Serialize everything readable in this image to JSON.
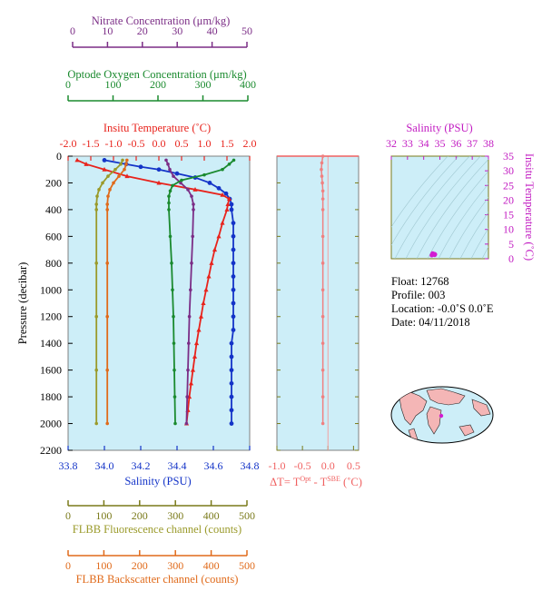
{
  "colors": {
    "panel_bg": "#cdeef8",
    "nitrate": "#7b2d86",
    "oxygen": "#1a8a2e",
    "temperature": "#e8231c",
    "salinity": "#1434c8",
    "fluorescence": "#9a9a2a",
    "backscatter": "#e06a1a",
    "delta_t": "#f08080",
    "ts_axis": "#c21cc2",
    "olive_axis": "#7a7a1a",
    "land": "#f4b6b6"
  },
  "axes": {
    "nitrate_label": "Nitrate Concentration (μm/kg)",
    "nitrate_ticks": [
      "0",
      "10",
      "20",
      "30",
      "40",
      "50"
    ],
    "oxygen_label": "Optode Oxygen Concentration (μm/kg)",
    "oxygen_ticks": [
      "0",
      "100",
      "200",
      "300",
      "400"
    ],
    "temperature_label": "Insitu Temperature (˚C)",
    "temperature_ticks": [
      "-2.0",
      "-1.5",
      "-1.0",
      "-0.5",
      "0.0",
      "0.5",
      "1.0",
      "1.5",
      "2.0"
    ],
    "pressure_label": "Pressure (decibar)",
    "pressure_ticks": [
      "0",
      "200",
      "400",
      "600",
      "800",
      "1000",
      "1200",
      "1400",
      "1600",
      "1800",
      "2000",
      "2200"
    ],
    "salinity_label": "Salinity (PSU)",
    "salinity_ticks": [
      "33.8",
      "34.0",
      "34.2",
      "34.4",
      "34.6",
      "34.8"
    ],
    "delta_label_prefix": "ΔT= T",
    "delta_label_sup1": "Opt",
    "delta_label_mid": " - T",
    "delta_label_sup2": "SBE",
    "delta_label_suffix": " (˚C)",
    "delta_ticks": [
      "-1.0",
      "-0.5",
      "0.0",
      "0.5"
    ],
    "fluorescence_label": "FLBB Fluorescence channel (counts)",
    "fluorescence_ticks": [
      "0",
      "100",
      "200",
      "300",
      "400",
      "500"
    ],
    "backscatter_label": "FLBB Backscatter channel (counts)",
    "backscatter_ticks": [
      "0",
      "100",
      "200",
      "300",
      "400",
      "500"
    ],
    "ts_salinity_label": "Salinity (PSU)",
    "ts_salinity_ticks": [
      "32",
      "33",
      "34",
      "35",
      "36",
      "37",
      "38"
    ],
    "ts_temperature_label": "Insitu Temperature (˚C)",
    "ts_temperature_ticks": [
      "0",
      "5",
      "10",
      "15",
      "20",
      "25",
      "30",
      "35"
    ]
  },
  "info": {
    "float": "Float:  12768",
    "profile": "Profile:  003",
    "location": "Location:  -0.0˚S   0.0˚E",
    "date": "Date:  04/11/2018"
  },
  "chart_data": [
    {
      "type": "line",
      "chart": "main-profile",
      "y_axis": "pressure (decibar)",
      "ylim": [
        2200,
        0
      ],
      "series": [
        {
          "name": "Salinity (PSU)",
          "xlim": [
            33.8,
            34.8
          ],
          "points": [
            [
              34.0,
              30
            ],
            [
              34.12,
              60
            ],
            [
              34.2,
              80
            ],
            [
              34.3,
              100
            ],
            [
              34.4,
              130
            ],
            [
              34.5,
              160
            ],
            [
              34.58,
              200
            ],
            [
              34.63,
              240
            ],
            [
              34.67,
              280
            ],
            [
              34.69,
              320
            ],
            [
              34.7,
              360
            ],
            [
              34.7,
              400
            ],
            [
              34.71,
              500
            ],
            [
              34.71,
              600
            ],
            [
              34.71,
              700
            ],
            [
              34.71,
              800
            ],
            [
              34.71,
              900
            ],
            [
              34.71,
              1000
            ],
            [
              34.71,
              1100
            ],
            [
              34.71,
              1200
            ],
            [
              34.71,
              1300
            ],
            [
              34.7,
              1400
            ],
            [
              34.7,
              1500
            ],
            [
              34.7,
              1600
            ],
            [
              34.7,
              1700
            ],
            [
              34.7,
              1800
            ],
            [
              34.7,
              1900
            ],
            [
              34.7,
              2000
            ]
          ]
        },
        {
          "name": "Insitu Temperature (˚C)",
          "xlim": [
            -2.0,
            2.0
          ],
          "points": [
            [
              -1.8,
              30
            ],
            [
              -1.6,
              60
            ],
            [
              -1.2,
              100
            ],
            [
              -0.7,
              150
            ],
            [
              0.0,
              200
            ],
            [
              0.8,
              250
            ],
            [
              1.4,
              290
            ],
            [
              1.55,
              320
            ],
            [
              1.52,
              360
            ],
            [
              1.5,
              400
            ],
            [
              1.4,
              500
            ],
            [
              1.32,
              600
            ],
            [
              1.23,
              700
            ],
            [
              1.16,
              800
            ],
            [
              1.1,
              900
            ],
            [
              1.04,
              1000
            ],
            [
              0.98,
              1100
            ],
            [
              0.93,
              1200
            ],
            [
              0.88,
              1300
            ],
            [
              0.83,
              1400
            ],
            [
              0.79,
              1500
            ],
            [
              0.75,
              1600
            ],
            [
              0.71,
              1700
            ],
            [
              0.67,
              1800
            ],
            [
              0.64,
              1900
            ],
            [
              0.61,
              2000
            ]
          ]
        },
        {
          "name": "Nitrate Concentration (μm/kg)",
          "xlim": [
            0,
            50
          ],
          "points": [
            [
              27,
              30
            ],
            [
              27.5,
              60
            ],
            [
              28,
              100
            ],
            [
              29,
              150
            ],
            [
              31,
              200
            ],
            [
              33,
              250
            ],
            [
              34,
              300
            ],
            [
              34.5,
              360
            ],
            [
              34.5,
              400
            ],
            [
              34.3,
              600
            ],
            [
              34.0,
              800
            ],
            [
              33.7,
              1000
            ],
            [
              33.4,
              1200
            ],
            [
              33.2,
              1400
            ],
            [
              33.0,
              1600
            ],
            [
              32.8,
              1800
            ],
            [
              32.6,
              2000
            ]
          ]
        },
        {
          "name": "Optode Oxygen Concentration (μm/kg)",
          "xlim": [
            0,
            400
          ],
          "points": [
            [
              365,
              30
            ],
            [
              355,
              60
            ],
            [
              340,
              100
            ],
            [
              300,
              140
            ],
            [
              250,
              180
            ],
            [
              230,
              220
            ],
            [
              225,
              260
            ],
            [
              222,
              300
            ],
            [
              222,
              350
            ],
            [
              222,
              400
            ],
            [
              225,
              600
            ],
            [
              228,
              800
            ],
            [
              230,
              1000
            ],
            [
              232,
              1200
            ],
            [
              233,
              1400
            ],
            [
              234,
              1600
            ],
            [
              235,
              1800
            ],
            [
              236,
              2000
            ]
          ]
        },
        {
          "name": "FLBB Fluorescence channel (counts)",
          "xlim": [
            0,
            500
          ],
          "points": [
            [
              150,
              30
            ],
            [
              145,
              60
            ],
            [
              130,
              100
            ],
            [
              110,
              150
            ],
            [
              95,
              200
            ],
            [
              85,
              250
            ],
            [
              80,
              300
            ],
            [
              78,
              360
            ],
            [
              78,
              400
            ],
            [
              78,
              800
            ],
            [
              78,
              1200
            ],
            [
              78,
              1600
            ],
            [
              78,
              2000
            ]
          ]
        },
        {
          "name": "FLBB Backscatter channel (counts)",
          "xlim": [
            0,
            500
          ],
          "points": [
            [
              162,
              30
            ],
            [
              160,
              60
            ],
            [
              155,
              100
            ],
            [
              140,
              150
            ],
            [
              125,
              200
            ],
            [
              115,
              250
            ],
            [
              110,
              300
            ],
            [
              108,
              360
            ],
            [
              108,
              400
            ],
            [
              108,
              800
            ],
            [
              108,
              1200
            ],
            [
              108,
              1600
            ],
            [
              108,
              2000
            ]
          ]
        }
      ]
    },
    {
      "type": "line",
      "chart": "delta-t",
      "xlim": [
        -1.0,
        0.5
      ],
      "ylim": [
        2200,
        0
      ],
      "series": [
        {
          "name": "ΔT",
          "points": [
            [
              -0.1,
              0
            ],
            [
              -0.12,
              50
            ],
            [
              -0.13,
              100
            ],
            [
              -0.12,
              150
            ],
            [
              -0.11,
              200
            ],
            [
              -0.1,
              260
            ],
            [
              -0.1,
              320
            ],
            [
              -0.1,
              400
            ],
            [
              -0.1,
              600
            ],
            [
              -0.1,
              800
            ],
            [
              -0.1,
              1000
            ],
            [
              -0.1,
              1200
            ],
            [
              -0.1,
              1400
            ],
            [
              -0.1,
              1600
            ],
            [
              -0.1,
              1800
            ],
            [
              -0.1,
              2000
            ]
          ]
        }
      ]
    },
    {
      "type": "scatter",
      "chart": "ts-diagram",
      "xlim": [
        32,
        38
      ],
      "ylim": [
        0,
        35
      ],
      "series": [
        {
          "name": "T-S",
          "points": [
            [
              34.5,
              1.2
            ],
            [
              34.6,
              1.4
            ],
            [
              34.65,
              1.6
            ],
            [
              34.55,
              1.8
            ],
            [
              34.7,
              1.5
            ],
            [
              34.68,
              1.3
            ]
          ]
        }
      ]
    }
  ]
}
